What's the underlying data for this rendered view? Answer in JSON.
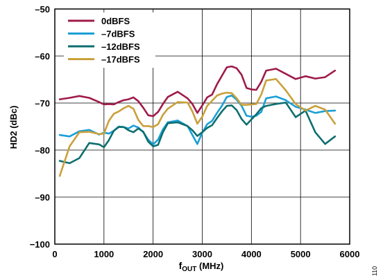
{
  "figure_id": "110",
  "chart_data": {
    "type": "line",
    "xlabel_main": "f",
    "xlabel_sub": "OUT",
    "xlabel_unit": " (MHz)",
    "ylabel": "HD2 (dBc)",
    "xlim": [
      0,
      6000
    ],
    "ylim": [
      -100,
      -50
    ],
    "xticks": [
      0,
      1000,
      2000,
      3000,
      4000,
      5000,
      6000
    ],
    "xtick_labels": [
      "0",
      "1000",
      "2000",
      "3000",
      "4000",
      "5000",
      "6000"
    ],
    "yticks": [
      -100,
      -90,
      -80,
      -70,
      -60,
      -50
    ],
    "ytick_labels": [
      "−100",
      "–90",
      "–80",
      "–70",
      "–60",
      "–50"
    ],
    "grid": true,
    "legend_position": "top-left",
    "series": [
      {
        "name": "0dBFS",
        "color": "#9e1b4a",
        "x": [
          100,
          300,
          500,
          700,
          900,
          1000,
          1100,
          1200,
          1300,
          1400,
          1500,
          1600,
          1700,
          1800,
          1900,
          2000,
          2100,
          2200,
          2300,
          2500,
          2700,
          2800,
          2900,
          3000,
          3100,
          3200,
          3300,
          3400,
          3500,
          3600,
          3700,
          3800,
          3900,
          4000,
          4100,
          4200,
          4300,
          4500,
          4700,
          4900,
          5100,
          5300,
          5500,
          5700
        ],
        "y": [
          -69.2,
          -68.9,
          -68.5,
          -68.9,
          -69.8,
          -70.3,
          -70.2,
          -70.3,
          -69.8,
          -69.4,
          -69.2,
          -68.8,
          -69.6,
          -71,
          -72.6,
          -72.8,
          -71.9,
          -70.2,
          -68.7,
          -67.6,
          -69,
          -70.2,
          -72.1,
          -70.5,
          -68.8,
          -68.2,
          -66,
          -64.2,
          -62.4,
          -62.2,
          -62.6,
          -64,
          -66.8,
          -67.1,
          -67.2,
          -65.5,
          -63.1,
          -62.7,
          -63.8,
          -64.9,
          -64.3,
          -64.8,
          -64.5,
          -63.1
        ]
      },
      {
        "name": "–7dBFS",
        "color": "#1a9fd6",
        "x": [
          100,
          300,
          500,
          700,
          900,
          1000,
          1100,
          1200,
          1300,
          1400,
          1500,
          1600,
          1700,
          1800,
          1900,
          2000,
          2100,
          2200,
          2300,
          2500,
          2700,
          2800,
          2900,
          3000,
          3100,
          3200,
          3300,
          3400,
          3500,
          3600,
          3700,
          3800,
          3900,
          4000,
          4100,
          4200,
          4300,
          4500,
          4700,
          4900,
          5100,
          5300,
          5500,
          5700
        ],
        "y": [
          -76.8,
          -77.1,
          -76,
          -75.7,
          -76.7,
          -76.3,
          -76.5,
          -75.9,
          -75,
          -75.1,
          -75.4,
          -74.8,
          -75.2,
          -76.2,
          -77.8,
          -78.8,
          -77.8,
          -75.6,
          -74.1,
          -73.7,
          -74.9,
          -76.8,
          -78.7,
          -76.3,
          -74.5,
          -73.8,
          -72.1,
          -70.6,
          -68.7,
          -68.4,
          -69.3,
          -70.6,
          -72.7,
          -72.9,
          -72.7,
          -71.9,
          -69,
          -68.6,
          -69.4,
          -70.8,
          -71.4,
          -72.1,
          -71.7,
          -71.6
        ]
      },
      {
        "name": "–12dBFS",
        "color": "#0e6e6e",
        "x": [
          100,
          300,
          500,
          700,
          900,
          1000,
          1100,
          1200,
          1300,
          1400,
          1500,
          1600,
          1700,
          1800,
          1900,
          2000,
          2100,
          2200,
          2300,
          2500,
          2700,
          2800,
          2900,
          3000,
          3100,
          3200,
          3300,
          3400,
          3500,
          3600,
          3700,
          3800,
          3900,
          4000,
          4100,
          4200,
          4300,
          4500,
          4700,
          4900,
          5100,
          5300,
          5500,
          5700
        ],
        "y": [
          -82.3,
          -82.8,
          -81.7,
          -78.5,
          -78.8,
          -79.4,
          -77.9,
          -75.9,
          -75.1,
          -75.1,
          -75.8,
          -76.2,
          -75.4,
          -76.1,
          -78.2,
          -79.2,
          -78.9,
          -76.2,
          -74.3,
          -74.1,
          -74.9,
          -75.8,
          -77,
          -76.2,
          -75.3,
          -74.7,
          -73.2,
          -71.8,
          -70.6,
          -70.5,
          -71.5,
          -73.4,
          -74.6,
          -73.5,
          -72.4,
          -71.1,
          -70.6,
          -70.2,
          -69.9,
          -73,
          -71.6,
          -76.2,
          -78.7,
          -77.1
        ]
      },
      {
        "name": "–17dBFS",
        "color": "#c9a03b",
        "x": [
          100,
          300,
          500,
          700,
          900,
          1000,
          1100,
          1200,
          1300,
          1400,
          1500,
          1600,
          1700,
          1800,
          1900,
          2000,
          2100,
          2200,
          2300,
          2500,
          2700,
          2800,
          2900,
          3000,
          3100,
          3200,
          3300,
          3400,
          3500,
          3600,
          3700,
          3800,
          3900,
          4000,
          4100,
          4200,
          4300,
          4500,
          4700,
          4900,
          5100,
          5300,
          5500,
          5700
        ],
        "y": [
          -85.5,
          -79.2,
          -76.2,
          -76.1,
          -76.6,
          -76.5,
          -73.8,
          -72.3,
          -71.8,
          -71.1,
          -70.6,
          -71.2,
          -73.6,
          -74.9,
          -74.9,
          -75.1,
          -74.5,
          -72.5,
          -71.2,
          -69.8,
          -69.9,
          -71.8,
          -74.4,
          -72.9,
          -70.6,
          -69.5,
          -68.4,
          -68,
          -67.8,
          -67.9,
          -69,
          -70.4,
          -70.4,
          -70.3,
          -70.2,
          -68.2,
          -65.2,
          -64.9,
          -67.3,
          -70.2,
          -71.6,
          -70.6,
          -71.4,
          -74.4
        ]
      }
    ]
  }
}
